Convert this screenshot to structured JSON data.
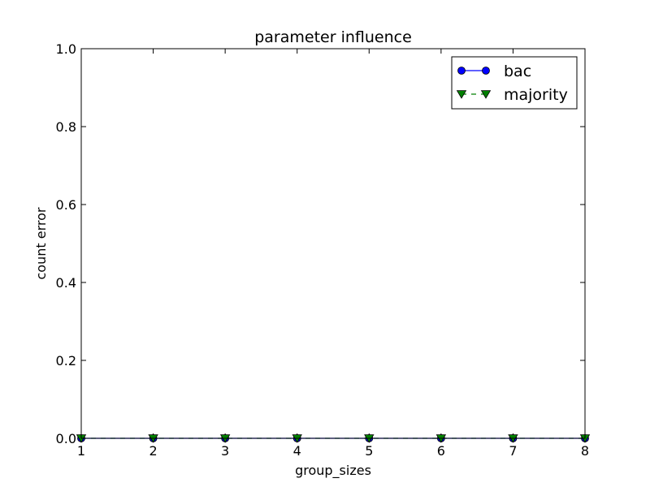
{
  "chart_data": {
    "type": "line",
    "title": "parameter influence",
    "xlabel": "group_sizes",
    "ylabel": "count error",
    "x": [
      1,
      2,
      3,
      4,
      5,
      6,
      7,
      8
    ],
    "xlim": [
      1,
      8
    ],
    "ylim": [
      0,
      1
    ],
    "xticks": [
      "1",
      "2",
      "3",
      "4",
      "5",
      "6",
      "7",
      "8"
    ],
    "yticks": [
      "0.0",
      "0.2",
      "0.4",
      "0.6",
      "0.8",
      "1.0"
    ],
    "grid": false,
    "legend_position": "top-right",
    "series": [
      {
        "name": "bac",
        "values": [
          0,
          0,
          0,
          0,
          0,
          0,
          0,
          0
        ],
        "color": "#0000ff",
        "marker": "circle",
        "linestyle": "solid"
      },
      {
        "name": "majority",
        "values": [
          0,
          0,
          0,
          0,
          0,
          0,
          0,
          0
        ],
        "color": "#008000",
        "marker": "triangle-down",
        "linestyle": "dashed"
      }
    ]
  }
}
